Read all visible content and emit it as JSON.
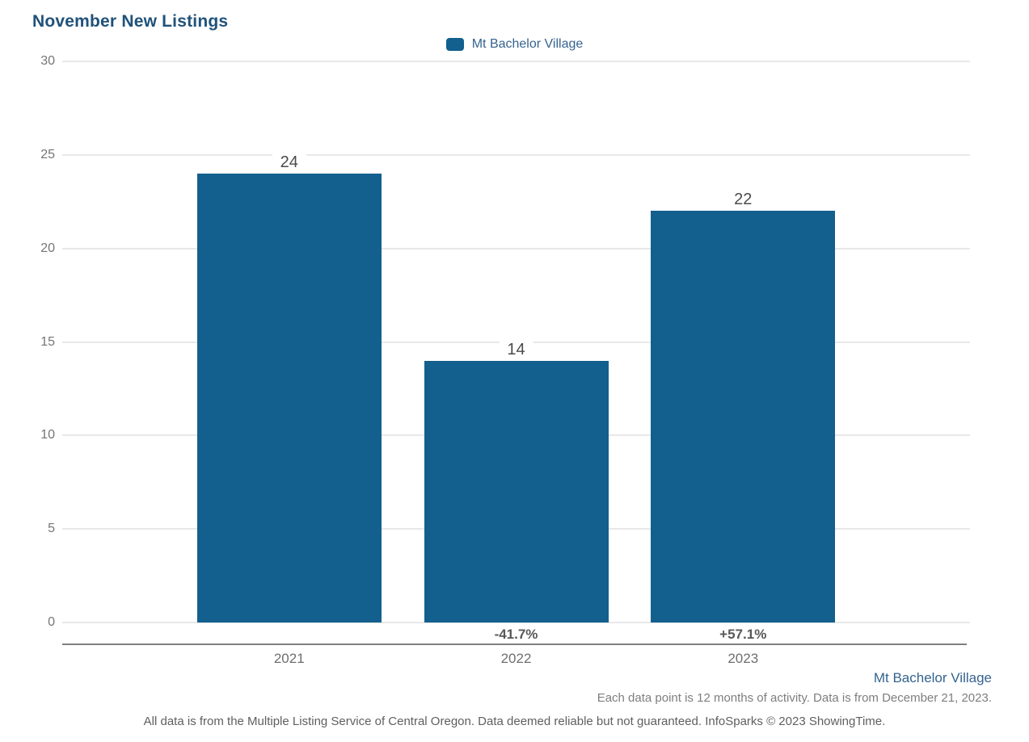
{
  "title": "November New Listings",
  "legend": {
    "label": "Mt Bachelor Village"
  },
  "colors": {
    "bar": "#135f8d",
    "title": "#20527a",
    "legend_text": "#35638f"
  },
  "chart_data": {
    "type": "bar",
    "title": "November New Listings",
    "categories": [
      "2021",
      "2022",
      "2023"
    ],
    "series": [
      {
        "name": "Mt Bachelor Village",
        "values": [
          24,
          14,
          22
        ]
      }
    ],
    "value_labels": [
      "24",
      "14",
      "22"
    ],
    "pct_change_labels": [
      "",
      "-41.7%",
      "+57.1%"
    ],
    "y_ticks": [
      0,
      5,
      10,
      15,
      20,
      25,
      30
    ],
    "ylim": [
      0,
      30
    ],
    "xlabel": "",
    "ylabel": "",
    "grid": true,
    "legend_position": "top-center",
    "bar_color": "#135f8d"
  },
  "footnotes": {
    "series_attribution": "Mt Bachelor Village",
    "data_note": "Each data point is 12 months of activity. Data is from December 21, 2023.",
    "disclaimer": "All data is from the Multiple Listing Service of Central Oregon. Data deemed reliable but not guaranteed. InfoSparks © 2023 ShowingTime."
  }
}
